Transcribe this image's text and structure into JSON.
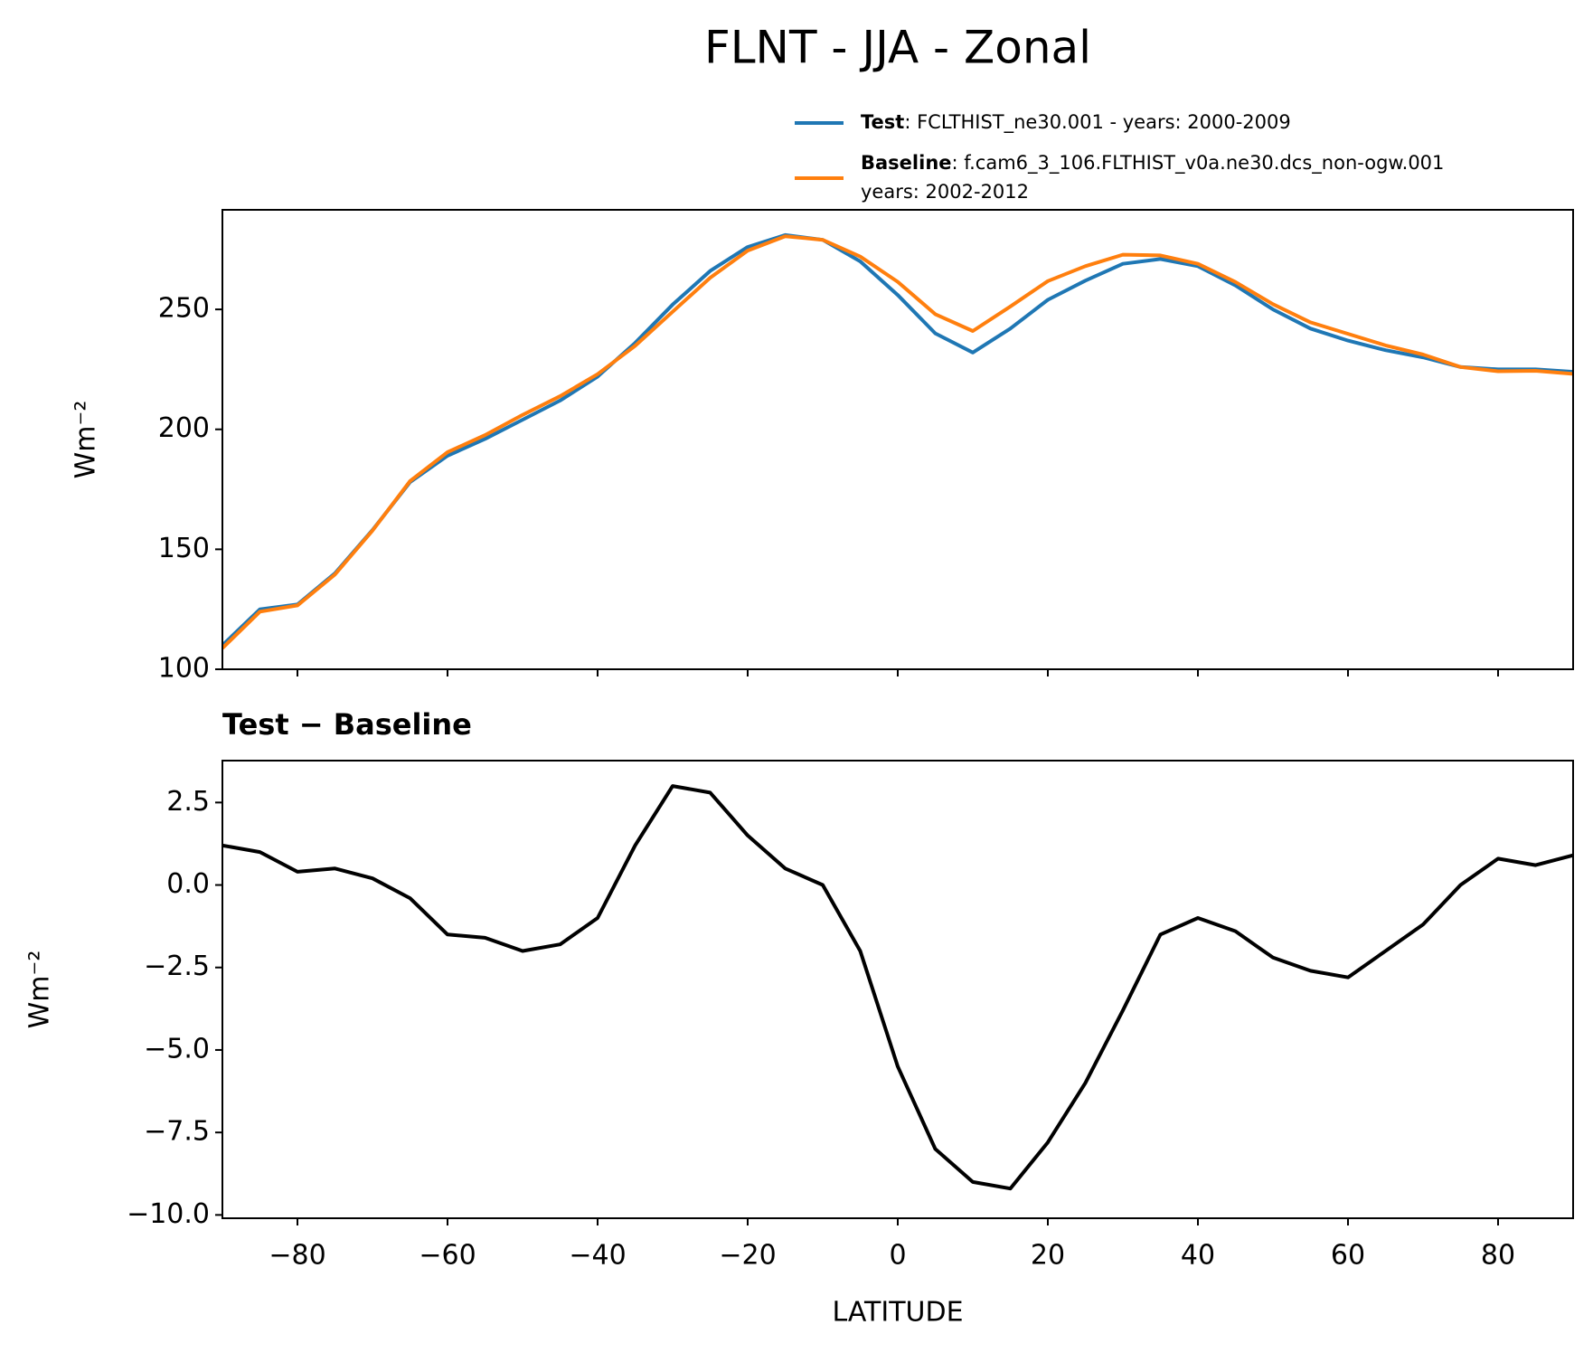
{
  "title": "FLNT - JJA - Zonal",
  "chart_data": [
    {
      "type": "line",
      "y_label": "Wm⁻²",
      "x": [
        -90,
        -85,
        -80,
        -75,
        -70,
        -65,
        -60,
        -55,
        -50,
        -45,
        -40,
        -35,
        -30,
        -25,
        -20,
        -15,
        -10,
        -5,
        0,
        5,
        10,
        15,
        20,
        25,
        30,
        35,
        40,
        45,
        50,
        55,
        60,
        65,
        70,
        75,
        80,
        85,
        90
      ],
      "series": [
        {
          "name": "Test",
          "description": [
            ": FCLTHIST_ne30.001 - years: 2000-2009"
          ],
          "color": "#1f77b4",
          "values": [
            110,
            125,
            127,
            140,
            158,
            178,
            189,
            196,
            204,
            212,
            222,
            236,
            252,
            266,
            276,
            281,
            279,
            270,
            256,
            240,
            232,
            242,
            254,
            262,
            269,
            271,
            268,
            260,
            250,
            242,
            237,
            233,
            230,
            226,
            225,
            225,
            224
          ]
        },
        {
          "name": "Baseline",
          "description": [
            ": f.cam6_3_106.FLTHIST_v0a.ne30.dcs_non-ogw.001",
            "years: 2002-2012"
          ],
          "color": "#ff7f0e",
          "values": [
            108.8,
            124,
            126.6,
            139.5,
            157.8,
            178.4,
            190.5,
            197.6,
            206,
            213.8,
            223,
            234.8,
            249,
            263.2,
            274.5,
            280.5,
            279,
            272,
            261.5,
            248,
            241,
            251.2,
            261.8,
            268,
            272.8,
            272.5,
            269,
            261.4,
            252.2,
            244.6,
            239.8,
            235,
            231.2,
            226,
            224.2,
            224.4,
            223.1
          ]
        }
      ],
      "xlim": [
        -90,
        90
      ],
      "xticks": [
        -80,
        -60,
        -40,
        -20,
        0,
        20,
        40,
        60,
        80
      ],
      "show_xtick_labels": false,
      "ylim": [
        100,
        291.5
      ],
      "yticks": [
        100,
        150,
        200,
        250
      ],
      "legend": "upper right outside"
    },
    {
      "type": "line",
      "title": "Test − Baseline",
      "y_label": "Wm⁻²",
      "x_label": "LATITUDE",
      "x": [
        -90,
        -85,
        -80,
        -75,
        -70,
        -65,
        -60,
        -55,
        -50,
        -45,
        -40,
        -35,
        -30,
        -25,
        -20,
        -15,
        -10,
        -5,
        0,
        5,
        10,
        15,
        20,
        25,
        30,
        35,
        40,
        45,
        50,
        55,
        60,
        65,
        70,
        75,
        80,
        85,
        90
      ],
      "series": [
        {
          "color": "#000000",
          "values": [
            1.2,
            1.0,
            0.4,
            0.5,
            0.2,
            -0.4,
            -1.5,
            -1.6,
            -2.0,
            -1.8,
            -1.0,
            1.2,
            3.0,
            2.8,
            1.5,
            0.5,
            0.0,
            -2.0,
            -5.5,
            -8.0,
            -9.0,
            -9.2,
            -7.8,
            -6.0,
            -3.8,
            -1.5,
            -1.0,
            -1.4,
            -2.2,
            -2.6,
            -2.8,
            -2.0,
            -1.2,
            0.0,
            0.8,
            0.6,
            0.9
          ]
        }
      ],
      "xlim": [
        -90,
        90
      ],
      "xticks": [
        {
          "value": -80,
          "label": "−80"
        },
        {
          "value": -60,
          "label": "−60"
        },
        {
          "value": -40,
          "label": "−40"
        },
        {
          "value": -20,
          "label": "−20"
        },
        0,
        20,
        40,
        60,
        80
      ],
      "show_xtick_labels": true,
      "ylim": [
        -10.1,
        3.77
      ],
      "yticks": [
        {
          "value": -10,
          "label": "−10.0"
        },
        {
          "value": -7.5,
          "label": "−7.5"
        },
        {
          "value": -5,
          "label": "−5.0"
        },
        {
          "value": -2.5,
          "label": "−2.5"
        },
        {
          "value": 0,
          "label": "0.0"
        },
        2.5
      ]
    }
  ]
}
